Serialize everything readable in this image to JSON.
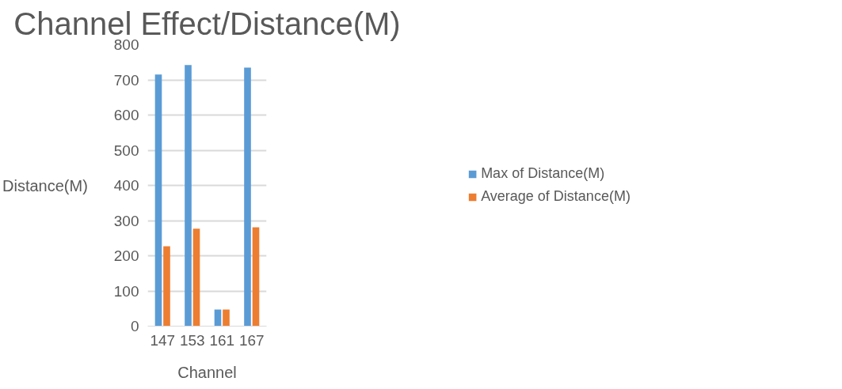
{
  "chart_data": {
    "type": "bar",
    "title": "Channel Effect/Distance(M)",
    "xlabel": "Channel",
    "ylabel": "Distance(M)",
    "categories": [
      "147",
      "153",
      "161",
      "167"
    ],
    "series": [
      {
        "name": "Max of Distance(M)",
        "color": "#5b9bd5",
        "values": [
          715,
          742,
          47,
          735
        ]
      },
      {
        "name": "Average of Distance(M)",
        "color": "#ed7d31",
        "values": [
          227,
          277,
          47,
          281
        ]
      }
    ],
    "ylim": [
      0,
      800
    ],
    "yticks": [
      0,
      100,
      200,
      300,
      400,
      500,
      600,
      700,
      800
    ],
    "grid": "y",
    "legend": "right"
  }
}
